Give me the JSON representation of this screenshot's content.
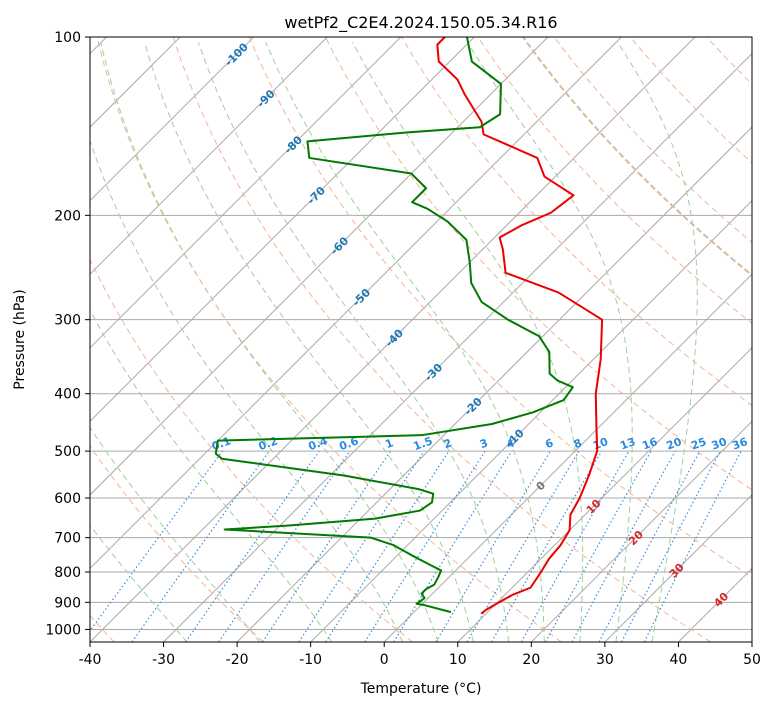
{
  "chart_data": {
    "type": "line",
    "chart_kind": "skew-t log-p diagram",
    "title": "wetPf2_C2E4.2024.150.05.34.R16",
    "xlabel": "Temperature (°C)",
    "ylabel": "Pressure (hPa)",
    "xlim": [
      -40,
      50
    ],
    "ylim": [
      1050,
      100
    ],
    "y_scale": "log",
    "skew_degrees": 45,
    "grid": true,
    "x_ticks": [
      -40,
      -30,
      -20,
      -10,
      0,
      10,
      20,
      30,
      40,
      50
    ],
    "y_ticks": [
      100,
      200,
      300,
      400,
      500,
      600,
      700,
      800,
      900,
      1000
    ],
    "series": [
      {
        "role": "temperature",
        "color": "#ee0000",
        "points": [
          [
            9.3,
            940
          ],
          [
            9.5,
            925
          ],
          [
            10.2,
            900
          ],
          [
            11.0,
            875
          ],
          [
            12.5,
            850
          ],
          [
            11.8,
            800
          ],
          [
            11.1,
            760
          ],
          [
            10.8,
            720
          ],
          [
            10.0,
            680
          ],
          [
            8.0,
            640
          ],
          [
            7.0,
            600
          ],
          [
            5.2,
            550
          ],
          [
            3.0,
            500
          ],
          [
            -0.8,
            450
          ],
          [
            -5.0,
            400
          ],
          [
            -9.0,
            350
          ],
          [
            -14.2,
            300
          ],
          [
            -23.8,
            270
          ],
          [
            -33.7,
            250
          ],
          [
            -37.3,
            228
          ],
          [
            -39.3,
            218
          ],
          [
            -38.0,
            208
          ],
          [
            -35.7,
            198
          ],
          [
            -35.0,
            185
          ],
          [
            -41.5,
            172
          ],
          [
            -45.0,
            160
          ],
          [
            -55.5,
            146
          ],
          [
            -57.5,
            139
          ],
          [
            -60.0,
            133
          ],
          [
            -63.5,
            125
          ],
          [
            -66.5,
            118
          ],
          [
            -71.5,
            110
          ],
          [
            -74.0,
            103
          ],
          [
            -74.0,
            100
          ]
        ]
      },
      {
        "role": "dewpoint",
        "color": "#007a00",
        "points": [
          [
            5.0,
            935
          ],
          [
            0.5,
            910
          ],
          [
            -0.8,
            905
          ],
          [
            -0.5,
            885
          ],
          [
            -1.5,
            870
          ],
          [
            -1.5,
            855
          ],
          [
            -1.0,
            840
          ],
          [
            -1.5,
            815
          ],
          [
            -2.0,
            795
          ],
          [
            -4.0,
            780
          ],
          [
            -8.0,
            750
          ],
          [
            -12.0,
            720
          ],
          [
            -16.0,
            700
          ],
          [
            -37.0,
            678
          ],
          [
            -29.0,
            668
          ],
          [
            -18.0,
            650
          ],
          [
            -13.0,
            630
          ],
          [
            -12.5,
            610
          ],
          [
            -13.5,
            590
          ],
          [
            -16.0,
            580
          ],
          [
            -28.0,
            550
          ],
          [
            -47.0,
            515
          ],
          [
            -48.5,
            505
          ],
          [
            -50.0,
            480
          ],
          [
            -23.0,
            470
          ],
          [
            -15.0,
            450
          ],
          [
            -11.0,
            430
          ],
          [
            -8.5,
            410
          ],
          [
            -9.0,
            390
          ],
          [
            -12.0,
            380
          ],
          [
            -14.0,
            370
          ],
          [
            -17.0,
            340
          ],
          [
            -20.5,
            320
          ],
          [
            -27.0,
            300
          ],
          [
            -33.0,
            280
          ],
          [
            -37.0,
            260
          ],
          [
            -40.0,
            240
          ],
          [
            -43.5,
            220
          ],
          [
            -48.5,
            205
          ],
          [
            -53.0,
            195
          ],
          [
            -56.0,
            190
          ],
          [
            -56.0,
            180
          ],
          [
            -60.0,
            170
          ],
          [
            -76.0,
            160
          ],
          [
            -78.5,
            150
          ],
          [
            -66.5,
            145
          ],
          [
            -57.0,
            142
          ],
          [
            -56.0,
            135
          ],
          [
            -60.0,
            120
          ],
          [
            -67.0,
            110
          ],
          [
            -71.0,
            100
          ]
        ]
      }
    ],
    "dry_adiabats_theta_c": [
      -40,
      -20,
      0,
      20,
      40,
      60,
      80,
      100,
      120,
      140,
      160,
      180,
      200,
      220
    ],
    "moist_adiabats_c": [
      -30,
      -20,
      -10,
      0,
      5,
      10,
      15,
      20,
      25,
      30,
      35
    ],
    "isotherm_labels": [
      {
        "text": "-100",
        "T": -100,
        "p": 107,
        "color": "#1f77b4"
      },
      {
        "text": "-90",
        "T": -90,
        "p": 127,
        "color": "#1f77b4"
      },
      {
        "text": "-80",
        "T": -80,
        "p": 152,
        "color": "#1f77b4"
      },
      {
        "text": "-70",
        "T": -70,
        "p": 185,
        "color": "#1f77b4"
      },
      {
        "text": "-60",
        "T": -60,
        "p": 225,
        "color": "#1f77b4"
      },
      {
        "text": "-50",
        "T": -50,
        "p": 275,
        "color": "#1f77b4"
      },
      {
        "text": "-40",
        "T": -40,
        "p": 322,
        "color": "#1f77b4"
      },
      {
        "text": "-30",
        "T": -30,
        "p": 368,
        "color": "#1f77b4"
      },
      {
        "text": "-20",
        "T": -20,
        "p": 420,
        "color": "#1f77b4"
      },
      {
        "text": "-10",
        "T": -10,
        "p": 475,
        "color": "#1f77b4"
      },
      {
        "text": "0",
        "T": 0,
        "p": 572,
        "color": "#777777"
      },
      {
        "text": "10",
        "T": 10,
        "p": 620,
        "color": "#d62728"
      },
      {
        "text": "20",
        "T": 20,
        "p": 700,
        "color": "#d62728"
      },
      {
        "text": "30",
        "T": 30,
        "p": 795,
        "color": "#d62728"
      },
      {
        "text": "40",
        "T": 40,
        "p": 890,
        "color": "#d62728"
      }
    ],
    "mixing_ratio_lines": [
      {
        "w": 0.1,
        "label": "0.1"
      },
      {
        "w": 0.2,
        "label": "0.2"
      },
      {
        "w": 0.4,
        "label": "0.4"
      },
      {
        "w": 0.6,
        "label": "0.6"
      },
      {
        "w": 1,
        "label": "1"
      },
      {
        "w": 1.5,
        "label": "1.5"
      },
      {
        "w": 2,
        "label": "2"
      },
      {
        "w": 3,
        "label": "3"
      },
      {
        "w": 4,
        "label": "4"
      },
      {
        "w": 6,
        "label": "6"
      },
      {
        "w": 8,
        "label": "8"
      },
      {
        "w": 10,
        "label": "10"
      },
      {
        "w": 13,
        "label": "13"
      },
      {
        "w": 16,
        "label": "16"
      },
      {
        "w": 20,
        "label": "20"
      },
      {
        "w": 25,
        "label": "25"
      },
      {
        "w": 30,
        "label": "30"
      },
      {
        "w": 36,
        "label": "36"
      }
    ],
    "colors": {
      "isotherm": "#aaaaaa",
      "isobar": "#aaaaaa",
      "dry_adiabat": "#f4b39a",
      "moist_adiabat": "#9fcf9f",
      "mixing_ratio": "#3b8fdc",
      "mixing_ratio_label": "#2b8ae0",
      "tan_curve": "#d9b99b"
    }
  }
}
